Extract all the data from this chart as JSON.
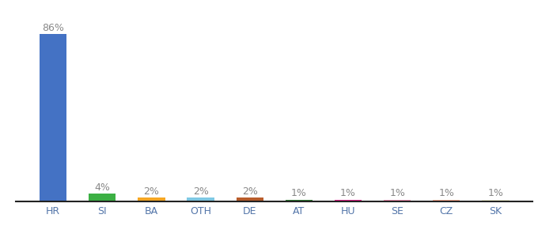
{
  "categories": [
    "HR",
    "SI",
    "BA",
    "OTH",
    "DE",
    "AT",
    "HU",
    "SE",
    "CZ",
    "SK"
  ],
  "values": [
    86,
    4,
    2,
    2,
    2,
    1,
    1,
    1,
    1,
    1
  ],
  "bar_colors": [
    "#4472C4",
    "#3CB044",
    "#F5A623",
    "#7EC8E3",
    "#B85C2B",
    "#2E7D32",
    "#E91E8C",
    "#F48FB1",
    "#FFAB91",
    "#F0F0D0"
  ],
  "value_labels": [
    "86%",
    "4%",
    "2%",
    "2%",
    "2%",
    "1%",
    "1%",
    "1%",
    "1%",
    "1%"
  ],
  "label_color": "#888888",
  "label_fontsize": 9,
  "tick_label_color": "#5577AA",
  "tick_fontsize": 9,
  "background_color": "#ffffff",
  "bar_width": 0.55,
  "ylim": [
    0,
    95
  ]
}
